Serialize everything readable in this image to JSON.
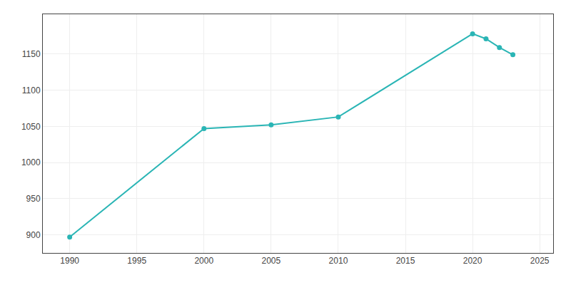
{
  "chart_data": {
    "type": "line",
    "x": [
      1990,
      2000,
      2005,
      2010,
      2020,
      2021,
      2022,
      2023
    ],
    "values": [
      897,
      1047,
      1052,
      1063,
      1178,
      1171,
      1159,
      1149
    ],
    "color": "#2ab5b5",
    "marker": "circle",
    "line_style": "solid",
    "xlim": [
      1988,
      2026
    ],
    "ylim": [
      875,
      1205
    ],
    "xticks": [
      1990,
      1995,
      2000,
      2005,
      2010,
      2015,
      2020,
      2025
    ],
    "yticks": [
      900,
      950,
      1000,
      1050,
      1100,
      1150
    ],
    "grid": true
  }
}
